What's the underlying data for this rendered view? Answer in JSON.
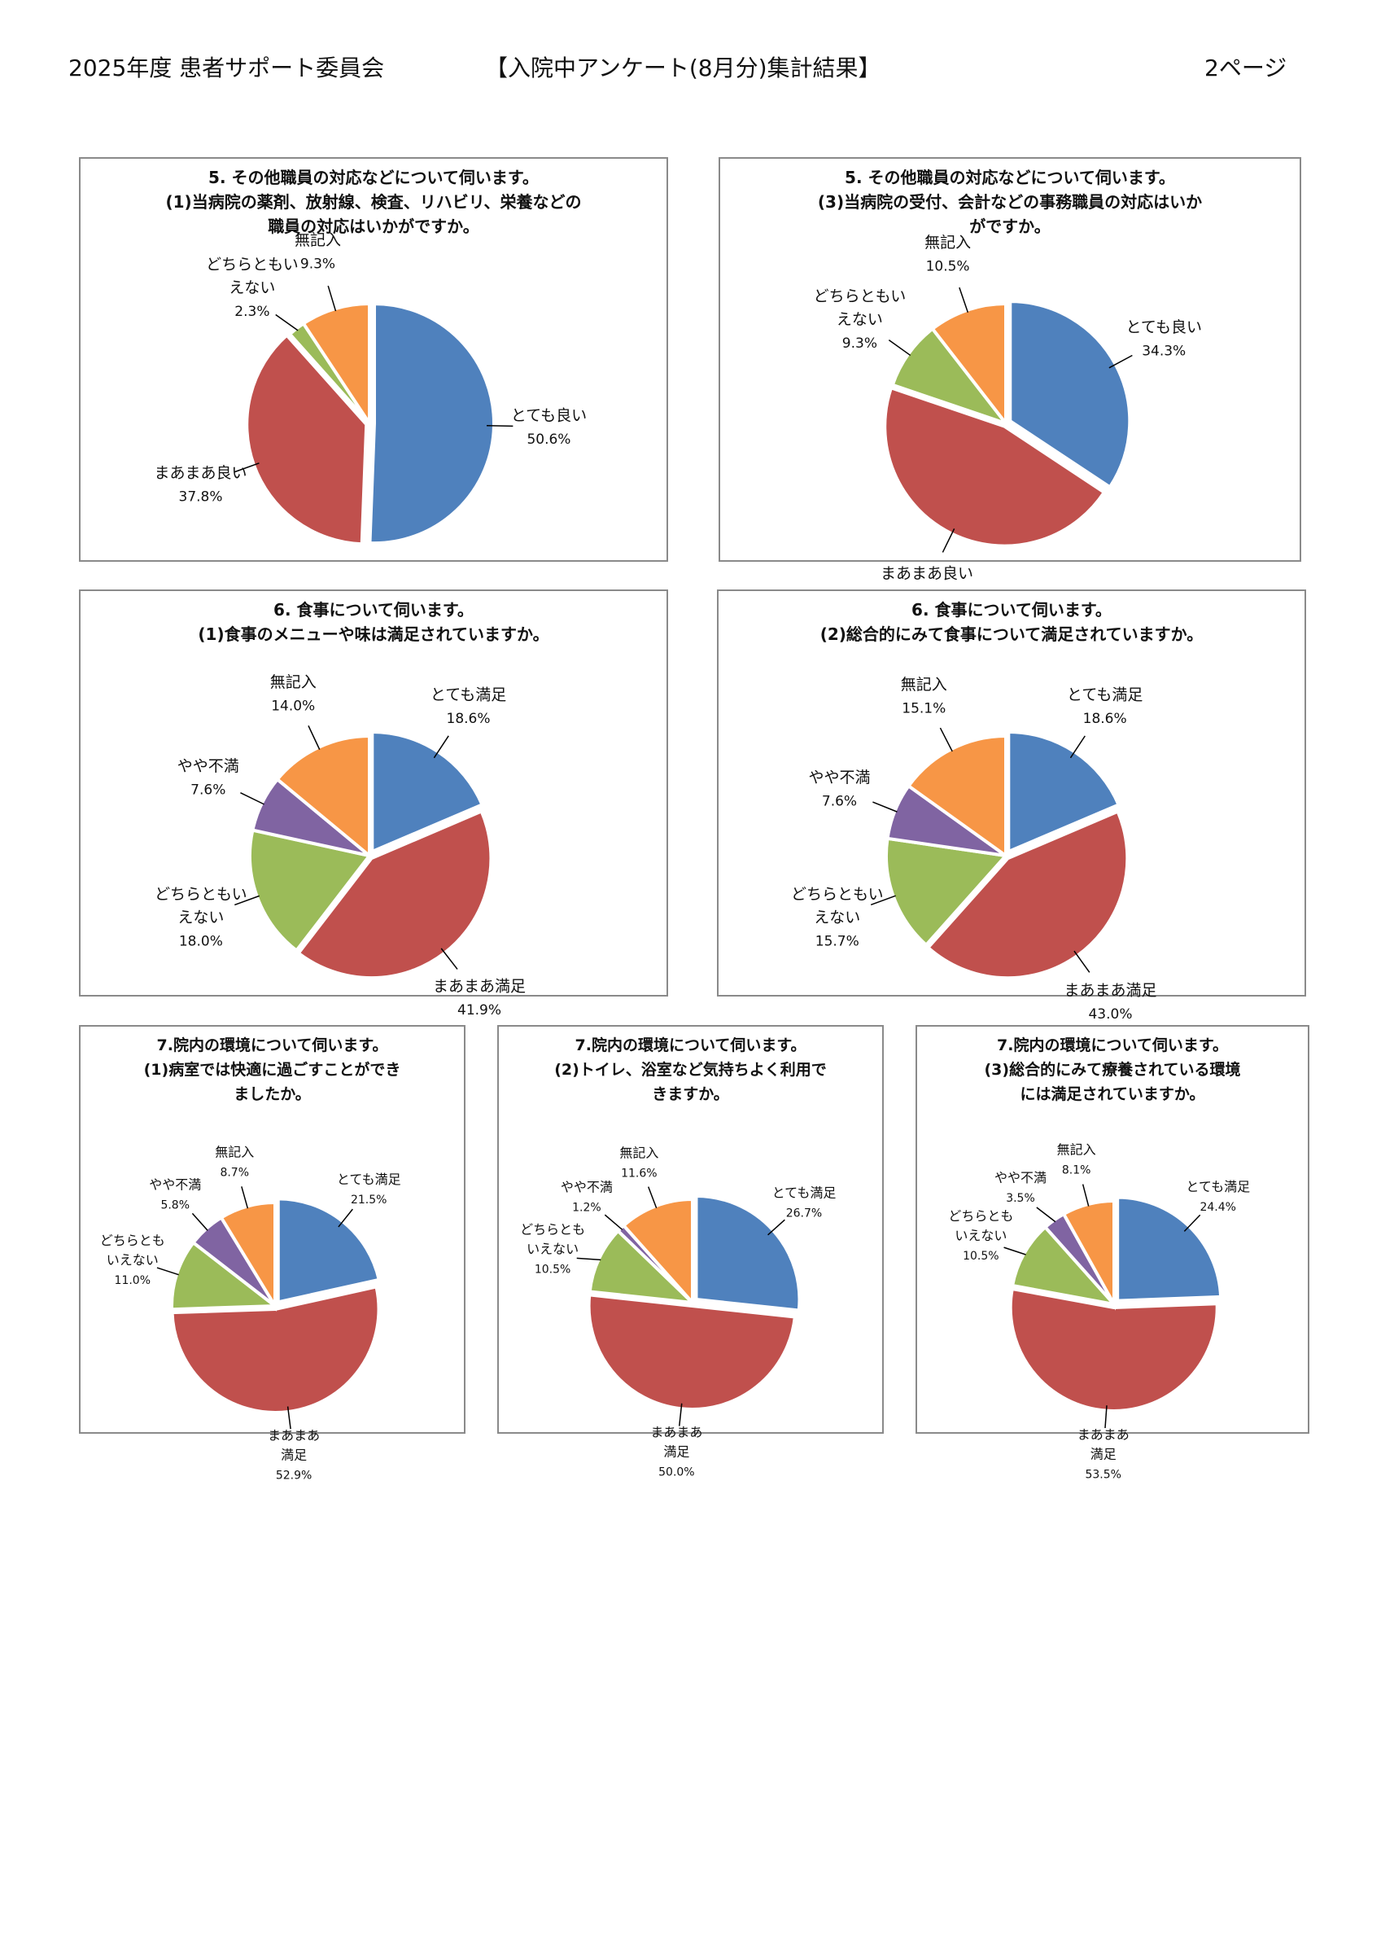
{
  "header": {
    "left": "2025年度 患者サポート委員会",
    "center": "【入院中アンケート(8月分)集計結果】",
    "right": "2ページ"
  },
  "colors": {
    "blue": "#4F81BD",
    "red": "#C0504D",
    "green": "#9BBB59",
    "purple": "#8064A2",
    "orange": "#F79646"
  },
  "chart_data": [
    {
      "type": "pie",
      "title_lines": [
        "5. その他職員の対応などについて伺います。",
        "(1)当病院の薬剤、放射線、検査、リハビリ、栄養などの",
        "職員の対応はいかがですか。"
      ],
      "slices": [
        {
          "label_lines": [
            "とても良い"
          ],
          "value": 50.6,
          "pct": "50.6%",
          "color": "#4F81BD"
        },
        {
          "label_lines": [
            "まあまあ良い"
          ],
          "value": 37.8,
          "pct": "37.8%",
          "color": "#C0504D"
        },
        {
          "label_lines": [
            "どちらともい",
            "えない"
          ],
          "value": 2.3,
          "pct": "2.3%",
          "color": "#9BBB59"
        },
        {
          "label_lines": [
            "無記入"
          ],
          "value": 9.3,
          "pct": "9.3%",
          "color": "#F79646"
        }
      ]
    },
    {
      "type": "pie",
      "title_lines": [
        "5. その他職員の対応などについて伺います。",
        "(3)当病院の受付、会計などの事務職員の対応はいか",
        "がですか。"
      ],
      "slices": [
        {
          "label_lines": [
            "とても良い"
          ],
          "value": 34.3,
          "pct": "34.3%",
          "color": "#4F81BD"
        },
        {
          "label_lines": [
            "まあまあ良い"
          ],
          "value": 45.9,
          "pct": "45.9%",
          "color": "#C0504D"
        },
        {
          "label_lines": [
            "どちらともい",
            "えない"
          ],
          "value": 9.3,
          "pct": "9.3%",
          "color": "#9BBB59"
        },
        {
          "label_lines": [
            "無記入"
          ],
          "value": 10.5,
          "pct": "10.5%",
          "color": "#F79646"
        }
      ]
    },
    {
      "type": "pie",
      "title_lines": [
        "6. 食事について伺います。",
        "(1)食事のメニューや味は満足されていますか。"
      ],
      "slices": [
        {
          "label_lines": [
            "とても満足"
          ],
          "value": 18.6,
          "pct": "18.6%",
          "color": "#4F81BD"
        },
        {
          "label_lines": [
            "まあまあ満足"
          ],
          "value": 41.9,
          "pct": "41.9%",
          "color": "#C0504D"
        },
        {
          "label_lines": [
            "どちらともい",
            "えない"
          ],
          "value": 18.0,
          "pct": "18.0%",
          "color": "#9BBB59"
        },
        {
          "label_lines": [
            "やや不満"
          ],
          "value": 7.6,
          "pct": "7.6%",
          "color": "#8064A2"
        },
        {
          "label_lines": [
            "無記入"
          ],
          "value": 14.0,
          "pct": "14.0%",
          "color": "#F79646"
        }
      ]
    },
    {
      "type": "pie",
      "title_lines": [
        "6. 食事について伺います。",
        "(2)総合的にみて食事について満足されていますか。"
      ],
      "slices": [
        {
          "label_lines": [
            "とても満足"
          ],
          "value": 18.6,
          "pct": "18.6%",
          "color": "#4F81BD"
        },
        {
          "label_lines": [
            "まあまあ満足"
          ],
          "value": 43.0,
          "pct": "43.0%",
          "color": "#C0504D"
        },
        {
          "label_lines": [
            "どちらともい",
            "えない"
          ],
          "value": 15.7,
          "pct": "15.7%",
          "color": "#9BBB59"
        },
        {
          "label_lines": [
            "やや不満"
          ],
          "value": 7.6,
          "pct": "7.6%",
          "color": "#8064A2"
        },
        {
          "label_lines": [
            "無記入"
          ],
          "value": 15.1,
          "pct": "15.1%",
          "color": "#F79646"
        }
      ]
    },
    {
      "type": "pie",
      "title_lines": [
        "7.院内の環境について伺います。",
        "(1)病室では快適に過ごすことができ",
        "ましたか。"
      ],
      "slices": [
        {
          "label_lines": [
            "とても満足"
          ],
          "value": 21.5,
          "pct": "21.5%",
          "color": "#4F81BD"
        },
        {
          "label_lines": [
            "まあまあ",
            "満足"
          ],
          "value": 52.9,
          "pct": "52.9%",
          "color": "#C0504D"
        },
        {
          "label_lines": [
            "どちらとも",
            "いえない"
          ],
          "value": 11.0,
          "pct": "11.0%",
          "color": "#9BBB59"
        },
        {
          "label_lines": [
            "やや不満"
          ],
          "value": 5.8,
          "pct": "5.8%",
          "color": "#8064A2"
        },
        {
          "label_lines": [
            "無記入"
          ],
          "value": 8.7,
          "pct": "8.7%",
          "color": "#F79646"
        }
      ]
    },
    {
      "type": "pie",
      "title_lines": [
        "7.院内の環境について伺います。",
        "(2)トイレ、浴室など気持ちよく利用で",
        "きますか。"
      ],
      "slices": [
        {
          "label_lines": [
            "とても満足"
          ],
          "value": 26.7,
          "pct": "26.7%",
          "color": "#4F81BD"
        },
        {
          "label_lines": [
            "まあまあ",
            "満足"
          ],
          "value": 50.0,
          "pct": "50.0%",
          "color": "#C0504D"
        },
        {
          "label_lines": [
            "どちらとも",
            "いえない"
          ],
          "value": 10.5,
          "pct": "10.5%",
          "color": "#9BBB59"
        },
        {
          "label_lines": [
            "やや不満"
          ],
          "value": 1.2,
          "pct": "1.2%",
          "color": "#8064A2"
        },
        {
          "label_lines": [
            "無記入"
          ],
          "value": 11.6,
          "pct": "11.6%",
          "color": "#F79646"
        }
      ]
    },
    {
      "type": "pie",
      "title_lines": [
        "7.院内の環境について伺います。",
        "(3)総合的にみて療養されている環境",
        "には満足されていますか。"
      ],
      "slices": [
        {
          "label_lines": [
            "とても満足"
          ],
          "value": 24.4,
          "pct": "24.4%",
          "color": "#4F81BD"
        },
        {
          "label_lines": [
            "まあまあ",
            "満足"
          ],
          "value": 53.5,
          "pct": "53.5%",
          "color": "#C0504D"
        },
        {
          "label_lines": [
            "どちらとも",
            "いえない"
          ],
          "value": 10.5,
          "pct": "10.5%",
          "color": "#9BBB59"
        },
        {
          "label_lines": [
            "やや不満"
          ],
          "value": 3.5,
          "pct": "3.5%",
          "color": "#8064A2"
        },
        {
          "label_lines": [
            "無記入"
          ],
          "value": 8.1,
          "pct": "8.1%",
          "color": "#F79646"
        }
      ]
    }
  ]
}
